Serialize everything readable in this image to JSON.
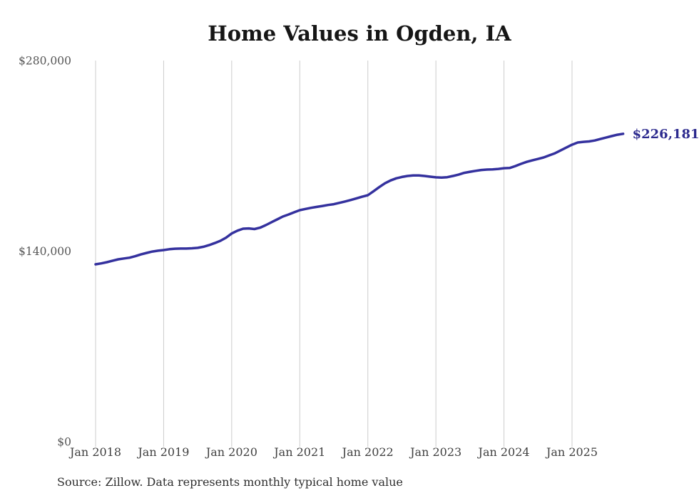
{
  "page": {
    "source_note": "Source: Zillow. Data represents monthly typical home value"
  },
  "chart_data": {
    "type": "line",
    "title": "Home Values in Ogden, IA",
    "series_name": "Typical home value",
    "end_label": "$226,181",
    "latest_value": 226181,
    "ylim": [
      0,
      280000
    ],
    "grid": "vertical-only",
    "legend": "none",
    "line_color": "#34319e",
    "end_label_color": "#2c2a8e",
    "grid_color": "#cccccc",
    "y_ticks": [
      {
        "value": 280000,
        "label": "$280,000"
      },
      {
        "value": 140000,
        "label": "$140,000"
      },
      {
        "value": 0,
        "label": "$0"
      }
    ],
    "x_tick_labels": [
      "Jan 2018",
      "Jan 2019",
      "Jan 2020",
      "Jan 2021",
      "Jan 2022",
      "Jan 2023",
      "Jan 2024",
      "Jan 2025"
    ],
    "x": [
      "Jan 2018",
      "Feb 2018",
      "Mar 2018",
      "Apr 2018",
      "May 2018",
      "Jun 2018",
      "Jul 2018",
      "Aug 2018",
      "Sep 2018",
      "Oct 2018",
      "Nov 2018",
      "Dec 2018",
      "Jan 2019",
      "Feb 2019",
      "Mar 2019",
      "Apr 2019",
      "May 2019",
      "Jun 2019",
      "Jul 2019",
      "Aug 2019",
      "Sep 2019",
      "Oct 2019",
      "Nov 2019",
      "Dec 2019",
      "Jan 2020",
      "Feb 2020",
      "Mar 2020",
      "Apr 2020",
      "May 2020",
      "Jun 2020",
      "Jul 2020",
      "Aug 2020",
      "Sep 2020",
      "Oct 2020",
      "Nov 2020",
      "Dec 2020",
      "Jan 2021",
      "Feb 2021",
      "Mar 2021",
      "Apr 2021",
      "May 2021",
      "Jun 2021",
      "Jul 2021",
      "Aug 2021",
      "Sep 2021",
      "Oct 2021",
      "Nov 2021",
      "Dec 2021",
      "Jan 2022",
      "Feb 2022",
      "Mar 2022",
      "Apr 2022",
      "May 2022",
      "Jun 2022",
      "Jul 2022",
      "Aug 2022",
      "Sep 2022",
      "Oct 2022",
      "Nov 2022",
      "Dec 2022",
      "Jan 2023",
      "Feb 2023",
      "Mar 2023",
      "Apr 2023",
      "May 2023",
      "Jun 2023",
      "Jul 2023",
      "Aug 2023",
      "Sep 2023",
      "Oct 2023",
      "Nov 2023",
      "Dec 2023",
      "Jan 2024",
      "Feb 2024",
      "Mar 2024",
      "Apr 2024",
      "May 2024",
      "Jun 2024",
      "Jul 2024",
      "Aug 2024",
      "Sep 2024",
      "Oct 2024",
      "Nov 2024",
      "Dec 2024",
      "Jan 2025",
      "Feb 2025",
      "Mar 2025",
      "Apr 2025",
      "May 2025",
      "Jun 2025",
      "Jul 2025",
      "Aug 2025",
      "Sep 2025",
      "Oct 2025"
    ],
    "values": [
      130300,
      131000,
      131900,
      133000,
      134000,
      134600,
      135200,
      136300,
      137600,
      138700,
      139700,
      140300,
      140800,
      141400,
      141800,
      141900,
      141900,
      142100,
      142400,
      143200,
      144400,
      145900,
      147600,
      149900,
      153000,
      155000,
      156500,
      156700,
      156200,
      157200,
      159100,
      161200,
      163300,
      165400,
      166900,
      168500,
      170100,
      171000,
      171800,
      172500,
      173200,
      173900,
      174500,
      175500,
      176500,
      177600,
      178800,
      180000,
      181100,
      184000,
      187000,
      189800,
      191900,
      193500,
      194500,
      195200,
      195600,
      195600,
      195200,
      194700,
      194200,
      194000,
      194300,
      195200,
      196200,
      197500,
      198300,
      199000,
      199600,
      199900,
      200100,
      200400,
      200900,
      201100,
      202500,
      204100,
      205600,
      206700,
      207700,
      208800,
      210400,
      211900,
      214000,
      216100,
      218200,
      219800,
      220300,
      220600,
      221300,
      222400,
      223400,
      224500,
      225500,
      226181
    ]
  }
}
